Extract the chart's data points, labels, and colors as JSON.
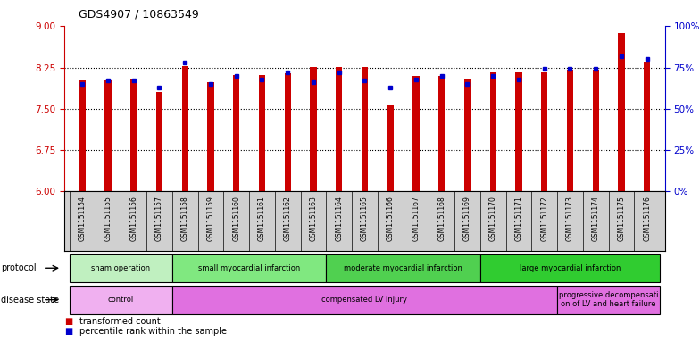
{
  "title": "GDS4907 / 10863549",
  "samples": [
    "GSM1151154",
    "GSM1151155",
    "GSM1151156",
    "GSM1151157",
    "GSM1151158",
    "GSM1151159",
    "GSM1151160",
    "GSM1151161",
    "GSM1151162",
    "GSM1151163",
    "GSM1151164",
    "GSM1151165",
    "GSM1151166",
    "GSM1151167",
    "GSM1151168",
    "GSM1151169",
    "GSM1151170",
    "GSM1151171",
    "GSM1151172",
    "GSM1151173",
    "GSM1151174",
    "GSM1151175",
    "GSM1151176"
  ],
  "bar_values": [
    8.02,
    8.02,
    8.05,
    7.8,
    8.28,
    7.98,
    8.12,
    8.12,
    8.15,
    8.26,
    8.26,
    8.26,
    7.56,
    8.1,
    8.1,
    8.05,
    8.16,
    8.17,
    8.16,
    8.21,
    8.21,
    8.87,
    8.35
  ],
  "percentile_values": [
    65,
    67,
    67,
    63,
    78,
    65,
    70,
    68,
    72,
    66,
    72,
    67,
    63,
    68,
    70,
    65,
    70,
    68,
    74,
    74,
    74,
    82,
    80
  ],
  "ylim_left": [
    6,
    9
  ],
  "ylim_right": [
    0,
    100
  ],
  "yticks_left": [
    6,
    6.75,
    7.5,
    8.25,
    9
  ],
  "yticks_right": [
    0,
    25,
    50,
    75,
    100
  ],
  "ytick_labels_right": [
    "0%",
    "25%",
    "50%",
    "75%",
    "100%"
  ],
  "bar_color": "#cc0000",
  "dot_color": "#0000cc",
  "bar_width": 0.25,
  "protocol_groups": [
    {
      "label": "sham operation",
      "start": 0,
      "end": 4,
      "color": "#c0f0c0"
    },
    {
      "label": "small myocardial infarction",
      "start": 4,
      "end": 10,
      "color": "#80e880"
    },
    {
      "label": "moderate myocardial infarction",
      "start": 10,
      "end": 16,
      "color": "#50d050"
    },
    {
      "label": "large myocardial infarction",
      "start": 16,
      "end": 23,
      "color": "#30cc30"
    }
  ],
  "disease_groups": [
    {
      "label": "control",
      "start": 0,
      "end": 4,
      "color": "#f0b0f0"
    },
    {
      "label": "compensated LV injury",
      "start": 4,
      "end": 19,
      "color": "#e070e0"
    },
    {
      "label": "progressive decompensati\non of LV and heart failure",
      "start": 19,
      "end": 23,
      "color": "#e070e0"
    }
  ],
  "legend_items": [
    {
      "label": "transformed count",
      "color": "#cc0000"
    },
    {
      "label": "percentile rank within the sample",
      "color": "#0000cc"
    }
  ],
  "dotted_lines": [
    6.75,
    7.5,
    8.25
  ],
  "xticklabel_bg": "#d0d0d0",
  "bg_color": "#ffffff"
}
